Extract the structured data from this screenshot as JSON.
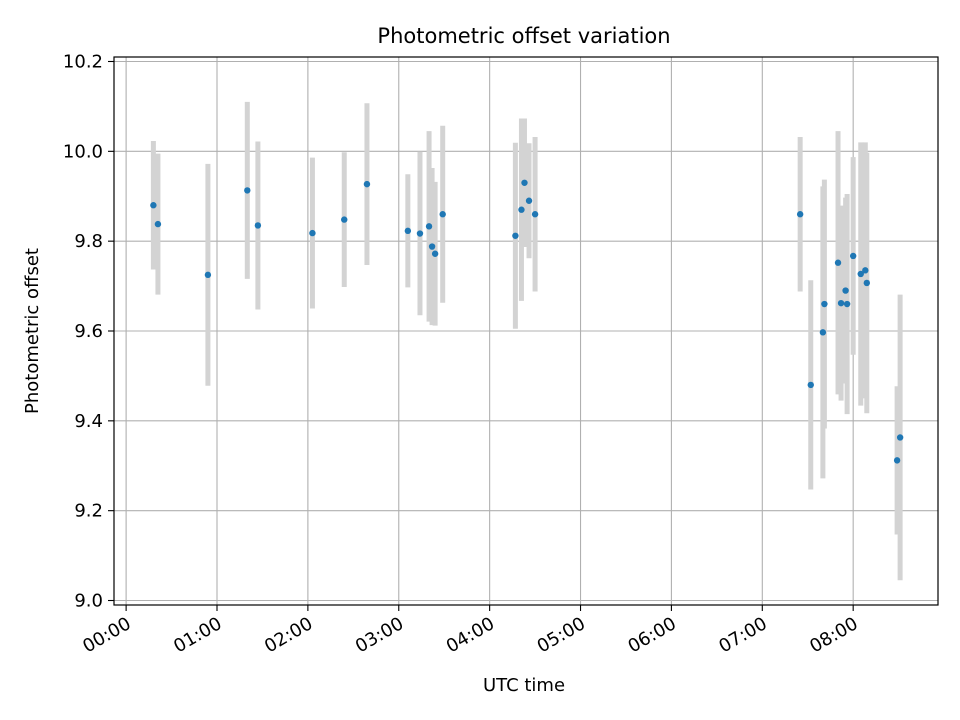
{
  "chart_data": {
    "type": "scatter",
    "title": "Photometric offset variation",
    "xlabel": "UTC time",
    "ylabel": "Photometric offset",
    "xlim": [
      "23:52",
      "08:56"
    ],
    "ylim": [
      8.99,
      10.21
    ],
    "x_ticks": [
      "00:00",
      "01:00",
      "02:00",
      "03:00",
      "04:00",
      "05:00",
      "06:00",
      "07:00",
      "08:00"
    ],
    "y_ticks": [
      "9.0",
      "9.2",
      "9.4",
      "9.6",
      "9.8",
      "10.0",
      "10.2"
    ],
    "grid": true,
    "colors": {
      "marker": "#1f77b4",
      "errorbar": "#d3d3d3",
      "grid": "#b0b0b0"
    },
    "series": [
      {
        "points": [
          {
            "x": "00:18",
            "y": 9.88,
            "err": 0.143
          },
          {
            "x": "00:21",
            "y": 9.838,
            "err": 0.157
          },
          {
            "x": "00:54",
            "y": 9.725,
            "err": 0.247
          },
          {
            "x": "01:20",
            "y": 9.913,
            "err": 0.197
          },
          {
            "x": "01:27",
            "y": 9.835,
            "err": 0.187
          },
          {
            "x": "02:03",
            "y": 9.818,
            "err": 0.168
          },
          {
            "x": "02:24",
            "y": 9.848,
            "err": 0.15
          },
          {
            "x": "02:39",
            "y": 9.927,
            "err": 0.18
          },
          {
            "x": "03:06",
            "y": 9.823,
            "err": 0.126
          },
          {
            "x": "03:14",
            "y": 9.817,
            "err": 0.182
          },
          {
            "x": "03:20",
            "y": 9.833,
            "err": 0.212
          },
          {
            "x": "03:22",
            "y": 9.788,
            "err": 0.175
          },
          {
            "x": "03:24",
            "y": 9.772,
            "err": 0.16
          },
          {
            "x": "03:29",
            "y": 9.86,
            "err": 0.197
          },
          {
            "x": "04:17",
            "y": 9.812,
            "err": 0.207
          },
          {
            "x": "04:21",
            "y": 9.87,
            "err": 0.203
          },
          {
            "x": "04:23",
            "y": 9.93,
            "err": 0.143
          },
          {
            "x": "04:26",
            "y": 9.89,
            "err": 0.128
          },
          {
            "x": "04:30",
            "y": 9.86,
            "err": 0.172
          },
          {
            "x": "07:25",
            "y": 9.86,
            "err": 0.172
          },
          {
            "x": "07:32",
            "y": 9.48,
            "err": 0.233
          },
          {
            "x": "07:40",
            "y": 9.597,
            "err": 0.325
          },
          {
            "x": "07:41",
            "y": 9.66,
            "err": 0.277
          },
          {
            "x": "07:50",
            "y": 9.752,
            "err": 0.293
          },
          {
            "x": "07:52",
            "y": 9.662,
            "err": 0.217
          },
          {
            "x": "07:55",
            "y": 9.69,
            "err": 0.207
          },
          {
            "x": "07:56",
            "y": 9.66,
            "err": 0.245
          },
          {
            "x": "08:00",
            "y": 9.767,
            "err": 0.22
          },
          {
            "x": "08:05",
            "y": 9.727,
            "err": 0.293
          },
          {
            "x": "08:08",
            "y": 9.735,
            "err": 0.285
          },
          {
            "x": "08:09",
            "y": 9.707,
            "err": 0.29
          },
          {
            "x": "08:29",
            "y": 9.312,
            "err": 0.165
          },
          {
            "x": "08:31",
            "y": 9.363,
            "err": 0.318
          }
        ]
      }
    ]
  }
}
